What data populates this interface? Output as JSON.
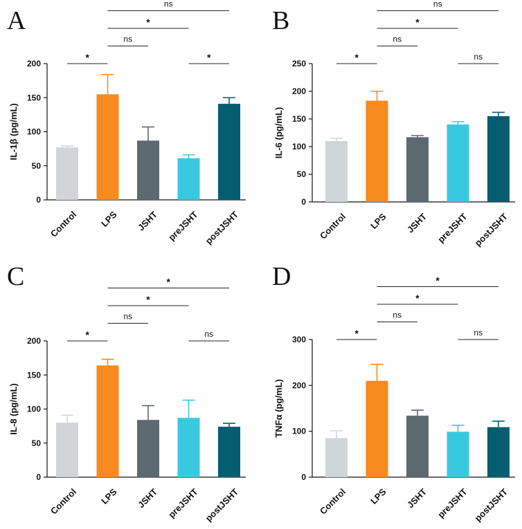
{
  "colors": {
    "Control": "#d0d5d9",
    "LPS": "#f78b1f",
    "JSHT": "#5c6971",
    "preJSHT": "#38c9e0",
    "postJSHT": "#055e6f"
  },
  "chart_data": [
    {
      "type": "bar",
      "panel": "A",
      "ylabel": "IL-1β (pg/mL)",
      "categories": [
        "Control",
        "LPS",
        "JSHT",
        "preJSHT",
        "postJSHT"
      ],
      "values": [
        77,
        155,
        87,
        61,
        141
      ],
      "errors": [
        2,
        29,
        20,
        5,
        9
      ],
      "ylim": [
        0,
        200
      ],
      "yticks": [
        "0",
        "50",
        "100",
        "150",
        "200"
      ],
      "comparisons": [
        {
          "from": "Control",
          "to": "LPS",
          "label": "*",
          "level": 1
        },
        {
          "from": "LPS",
          "to": "JSHT",
          "label": "ns",
          "level": 2
        },
        {
          "from": "LPS",
          "to": "preJSHT",
          "label": "*",
          "level": 3
        },
        {
          "from": "LPS",
          "to": "postJSHT",
          "label": "ns",
          "level": 4
        },
        {
          "from": "preJSHT",
          "to": "postJSHT",
          "label": "*",
          "level": 1
        }
      ]
    },
    {
      "type": "bar",
      "panel": "B",
      "ylabel": "IL-6 (pg/mL)",
      "categories": [
        "Control",
        "LPS",
        "JSHT",
        "preJSHT",
        "postJSHT"
      ],
      "values": [
        110,
        183,
        117,
        140,
        155
      ],
      "errors": [
        5,
        17,
        3,
        5,
        7
      ],
      "ylim": [
        0,
        250
      ],
      "yticks": [
        "0",
        "50",
        "100",
        "150",
        "200",
        "250"
      ],
      "comparisons": [
        {
          "from": "Control",
          "to": "LPS",
          "label": "*",
          "level": 1
        },
        {
          "from": "LPS",
          "to": "JSHT",
          "label": "ns",
          "level": 2
        },
        {
          "from": "LPS",
          "to": "preJSHT",
          "label": "*",
          "level": 3
        },
        {
          "from": "LPS",
          "to": "postJSHT",
          "label": "ns",
          "level": 4
        },
        {
          "from": "preJSHT",
          "to": "postJSHT",
          "label": "ns",
          "level": 1
        }
      ]
    },
    {
      "type": "bar",
      "panel": "C",
      "ylabel": "IL-8 (pg/mL)",
      "categories": [
        "Control",
        "LPS",
        "JSHT",
        "preJSHT",
        "postJSHT"
      ],
      "values": [
        80,
        164,
        84,
        87,
        74
      ],
      "errors": [
        11,
        9,
        21,
        26,
        5
      ],
      "ylim": [
        0,
        200
      ],
      "yticks": [
        "0",
        "50",
        "100",
        "150",
        "200"
      ],
      "comparisons": [
        {
          "from": "Control",
          "to": "LPS",
          "label": "*",
          "level": 1
        },
        {
          "from": "LPS",
          "to": "JSHT",
          "label": "ns",
          "level": 2
        },
        {
          "from": "LPS",
          "to": "preJSHT",
          "label": "*",
          "level": 3
        },
        {
          "from": "LPS",
          "to": "postJSHT",
          "label": "*",
          "level": 4
        },
        {
          "from": "preJSHT",
          "to": "postJSHT",
          "label": "ns",
          "level": 1
        }
      ]
    },
    {
      "type": "bar",
      "panel": "D",
      "ylabel": "TNFα (pg/mL)",
      "categories": [
        "Control",
        "LPS",
        "JSHT",
        "preJSHT",
        "postJSHT"
      ],
      "values": [
        85,
        210,
        134,
        99,
        109
      ],
      "errors": [
        16,
        36,
        12,
        14,
        13
      ],
      "ylim": [
        0,
        300
      ],
      "yticks": [
        "0",
        "100",
        "200",
        "300"
      ],
      "comparisons": [
        {
          "from": "Control",
          "to": "LPS",
          "label": "*",
          "level": 1
        },
        {
          "from": "LPS",
          "to": "JSHT",
          "label": "ns",
          "level": 2
        },
        {
          "from": "LPS",
          "to": "preJSHT",
          "label": "*",
          "level": 3
        },
        {
          "from": "LPS",
          "to": "postJSHT",
          "label": "*",
          "level": 4
        },
        {
          "from": "preJSHT",
          "to": "postJSHT",
          "label": "ns",
          "level": 1
        }
      ]
    }
  ]
}
